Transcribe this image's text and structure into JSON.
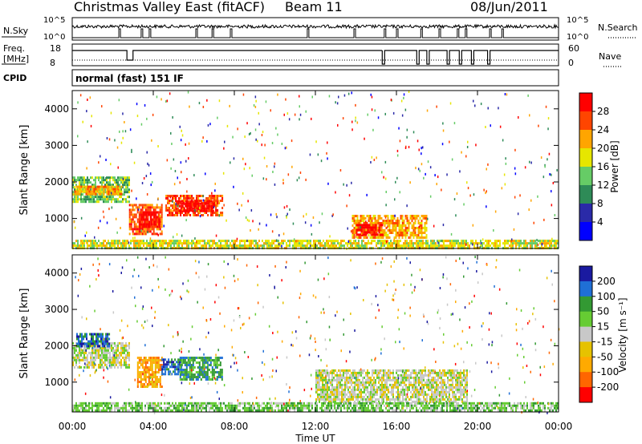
{
  "header": {
    "title": "Christmas Valley East (fitACF)",
    "beam": "Beam 11",
    "date": "08/Jun/2011"
  },
  "panels": {
    "nsky": {
      "label": "N.Sky",
      "tick_top": "10^5",
      "tick_bottom": "10^0"
    },
    "nsearch": {
      "label": "N.Search",
      "tick_top": "10^5",
      "tick_bottom": "10^0"
    },
    "freq": {
      "label_line1": "Freq.",
      "label_line2": "[MHz]",
      "tick_top": "18",
      "tick_bottom": "8"
    },
    "nave": {
      "label": "Nave",
      "tick_top": "60",
      "tick_bottom": "0"
    },
    "cpid": {
      "label": "CPID",
      "text": "normal (fast) 151 IF"
    }
  },
  "colors": {
    "power": [
      "#0000ff",
      "#2a2aa8",
      "#2e8b57",
      "#66cc66",
      "#e6e600",
      "#ffa500",
      "#ff4500",
      "#ff0000"
    ],
    "velocity": [
      "#ff0000",
      "#ff6600",
      "#ffaa00",
      "#e6c200",
      "#c8c8c8",
      "#66cc33",
      "#339933",
      "#1f6fd6",
      "#1a1aa0"
    ],
    "ground_scatter": "#c0c0c0"
  },
  "chart_data": [
    {
      "type": "heatmap",
      "name": "power",
      "ylabel": "Slant Range [km]",
      "y_ticks": [
        "1000",
        "2000",
        "3000",
        "4000"
      ],
      "ylim": [
        180,
        4500
      ],
      "x_ticks": [
        "00:00",
        "04:00",
        "08:00",
        "12:00",
        "16:00",
        "20:00",
        "00:00"
      ],
      "colorbar": {
        "label": "Power [dB]",
        "ticks": [
          "4",
          "8",
          "12",
          "16",
          "20",
          "24",
          "28"
        ]
      },
      "regions": [
        {
          "t0": 0.0,
          "t1": 2.8,
          "r0": 1450,
          "r1": 2150,
          "level": 3
        },
        {
          "t0": 0.1,
          "t1": 2.4,
          "r0": 1650,
          "r1": 1900,
          "level": 5
        },
        {
          "t0": 2.8,
          "t1": 4.4,
          "r0": 600,
          "r1": 1400,
          "level": 6
        },
        {
          "t0": 3.3,
          "t1": 4.3,
          "r0": 800,
          "r1": 1200,
          "level": 7
        },
        {
          "t0": 4.6,
          "t1": 7.4,
          "r0": 1100,
          "r1": 1650,
          "level": 6
        },
        {
          "t0": 5.1,
          "t1": 7.0,
          "r0": 1200,
          "r1": 1500,
          "level": 7
        },
        {
          "t0": 13.8,
          "t1": 17.5,
          "r0": 500,
          "r1": 1100,
          "level": 5
        },
        {
          "t0": 14.0,
          "t1": 15.3,
          "r0": 550,
          "r1": 850,
          "level": 7
        },
        {
          "t0": 0.0,
          "t1": 24.0,
          "r0": 200,
          "r1": 420,
          "level": 4
        }
      ]
    },
    {
      "type": "heatmap",
      "name": "velocity",
      "ylabel": "Slant Range [km]",
      "y_ticks": [
        "1000",
        "2000",
        "3000",
        "4000"
      ],
      "ylim": [
        180,
        4500
      ],
      "x_ticks": [
        "00:00",
        "04:00",
        "08:00",
        "12:00",
        "16:00",
        "20:00",
        "00:00"
      ],
      "xlabel": "Time UT",
      "colorbar": {
        "label": "Velocity [m s⁻¹]",
        "ticks": [
          "200",
          "100",
          "50",
          "15",
          "-15",
          "-50",
          "-100",
          "-200"
        ]
      },
      "regions": [
        {
          "t0": 0.0,
          "t1": 2.8,
          "r0": 1400,
          "r1": 2100,
          "level": 4
        },
        {
          "t0": 0.2,
          "t1": 1.8,
          "r0": 2000,
          "r1": 2350,
          "level": 7
        },
        {
          "t0": 3.2,
          "t1": 4.4,
          "r0": 900,
          "r1": 1700,
          "level": 2
        },
        {
          "t0": 4.4,
          "t1": 5.4,
          "r0": 1200,
          "r1": 1650,
          "level": 7
        },
        {
          "t0": 5.3,
          "t1": 7.4,
          "r0": 1050,
          "r1": 1700,
          "level": 6
        },
        {
          "t0": 12.0,
          "t1": 19.5,
          "r0": 450,
          "r1": 1350,
          "level": 4
        },
        {
          "t0": 0.0,
          "t1": 24.0,
          "r0": 200,
          "r1": 450,
          "level": 5
        }
      ]
    }
  ],
  "time_x_axis": {
    "start_hours": 0,
    "end_hours": 24
  }
}
